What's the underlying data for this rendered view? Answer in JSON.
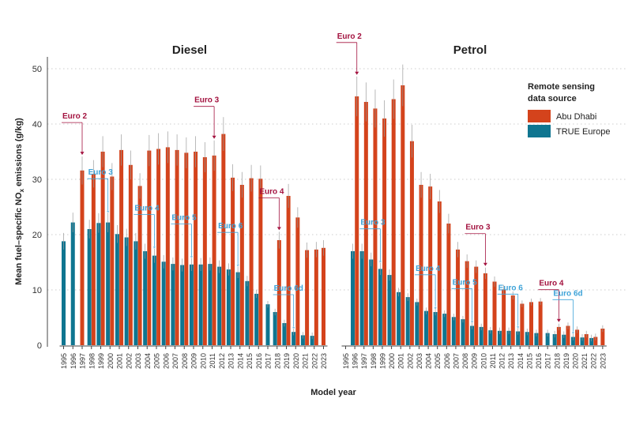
{
  "chart_data": {
    "type": "bar",
    "ylabel_main": "Mean fuel–specific NO",
    "ylabel_sub": "x",
    "ylabel_end": " emissions (g/kg)",
    "xlabel": "Model year",
    "ylim": [
      0,
      52
    ],
    "yticks": [
      0,
      10,
      20,
      30,
      40,
      50
    ],
    "grid": "horizontal dotted",
    "legend": {
      "title_line1": "Remote sensing",
      "title_line2": "data source",
      "entries": [
        {
          "name": "Abu Dhabi",
          "color": "#d4431c"
        },
        {
          "name": "TRUE Europe",
          "color": "#0f7590"
        }
      ],
      "placement": "right"
    },
    "colors": {
      "abu_dhabi": "#d4431c",
      "true_europe": "#0f7590",
      "axis": "#444444",
      "grid": "#cccccc",
      "annotation_abu_dhabi": "#a3123f",
      "annotation_europe": "#3ea3d8"
    },
    "panels": [
      {
        "title": "Diesel",
        "years": [
          "1995",
          "1996",
          "1997",
          "1998",
          "1999",
          "2000",
          "2001",
          "2002",
          "2003",
          "2004",
          "2005",
          "2006",
          "2007",
          "2008",
          "2009",
          "2010",
          "2011",
          "2012",
          "2013",
          "2014",
          "2015",
          "2016",
          "2017",
          "2018",
          "2019",
          "2020",
          "2021",
          "2022",
          "2023"
        ],
        "series": [
          {
            "name": "Abu Dhabi",
            "values": [
              null,
              null,
              31.6,
              31.0,
              35.0,
              30.5,
              35.3,
              32.6,
              28.8,
              35.2,
              35.5,
              35.8,
              35.3,
              34.8,
              35.0,
              34.0,
              34.3,
              38.2,
              30.3,
              29.0,
              30.2,
              30.1,
              null,
              19.0,
              27.0,
              23.1,
              17.2,
              17.3,
              17.6
            ]
          },
          {
            "name": "TRUE Europe",
            "values": [
              18.8,
              22.2,
              null,
              21.0,
              22.1,
              22.2,
              20.1,
              19.5,
              18.8,
              17.0,
              16.2,
              15.1,
              14.7,
              14.5,
              14.6,
              14.6,
              14.7,
              14.2,
              13.7,
              13.2,
              11.6,
              9.3,
              7.4,
              6.0,
              4.0,
              2.4,
              1.8,
              1.7,
              null
            ]
          }
        ],
        "annotations": [
          {
            "label": "Euro 2",
            "year": "1997",
            "source": "Abu Dhabi"
          },
          {
            "label": "Euro 3",
            "year": "2000",
            "source": "TRUE Europe"
          },
          {
            "label": "Euro 4",
            "year": "2005",
            "source": "TRUE Europe"
          },
          {
            "label": "Euro 5",
            "year": "2009",
            "source": "TRUE Europe"
          },
          {
            "label": "Euro 3",
            "year": "2011",
            "source": "Abu Dhabi"
          },
          {
            "label": "Euro 6",
            "year": "2014",
            "source": "TRUE Europe"
          },
          {
            "label": "Euro 4",
            "year": "2018",
            "source": "Abu Dhabi"
          },
          {
            "label": "Euro 6d",
            "year": "2020",
            "source": "TRUE Europe"
          }
        ]
      },
      {
        "title": "Petrol",
        "years": [
          "1995",
          "1996",
          "1997",
          "1998",
          "1999",
          "2000",
          "2001",
          "2002",
          "2003",
          "2004",
          "2005",
          "2006",
          "2007",
          "2008",
          "2009",
          "2010",
          "2011",
          "2012",
          "2013",
          "2014",
          "2015",
          "2016",
          "2017",
          "2018",
          "2019",
          "2020",
          "2021",
          "2022",
          "2023"
        ],
        "series": [
          {
            "name": "Abu Dhabi",
            "values": [
              null,
              45.0,
              44.0,
              42.8,
              41.0,
              44.5,
              47.0,
              36.9,
              29.0,
              28.7,
              26.0,
              22.0,
              17.3,
              15.2,
              14.2,
              13.0,
              11.5,
              10.1,
              9.0,
              7.5,
              7.8,
              7.9,
              null,
              3.3,
              3.5,
              2.8,
              2.0,
              1.5,
              3.0
            ]
          },
          {
            "name": "TRUE Europe",
            "values": [
              null,
              17.0,
              17.0,
              15.5,
              13.8,
              12.7,
              9.6,
              8.7,
              7.8,
              6.2,
              6.0,
              5.7,
              5.1,
              4.7,
              3.5,
              3.3,
              2.7,
              2.6,
              2.6,
              2.5,
              2.4,
              2.2,
              2.2,
              2.0,
              1.9,
              1.5,
              1.4,
              1.3,
              null
            ]
          }
        ],
        "annotations": [
          {
            "label": "Euro 2",
            "year": "1996",
            "source": "Abu Dhabi"
          },
          {
            "label": "Euro 3",
            "year": "1999",
            "source": "TRUE Europe"
          },
          {
            "label": "Euro 4",
            "year": "2005",
            "source": "TRUE Europe"
          },
          {
            "label": "Euro 5",
            "year": "2009",
            "source": "TRUE Europe"
          },
          {
            "label": "Euro 3",
            "year": "2010",
            "source": "Abu Dhabi"
          },
          {
            "label": "Euro 6",
            "year": "2014",
            "source": "TRUE Europe"
          },
          {
            "label": "Euro 4",
            "year": "2018",
            "source": "Abu Dhabi"
          },
          {
            "label": "Euro 6d",
            "year": "2020",
            "source": "TRUE Europe"
          }
        ]
      }
    ]
  }
}
